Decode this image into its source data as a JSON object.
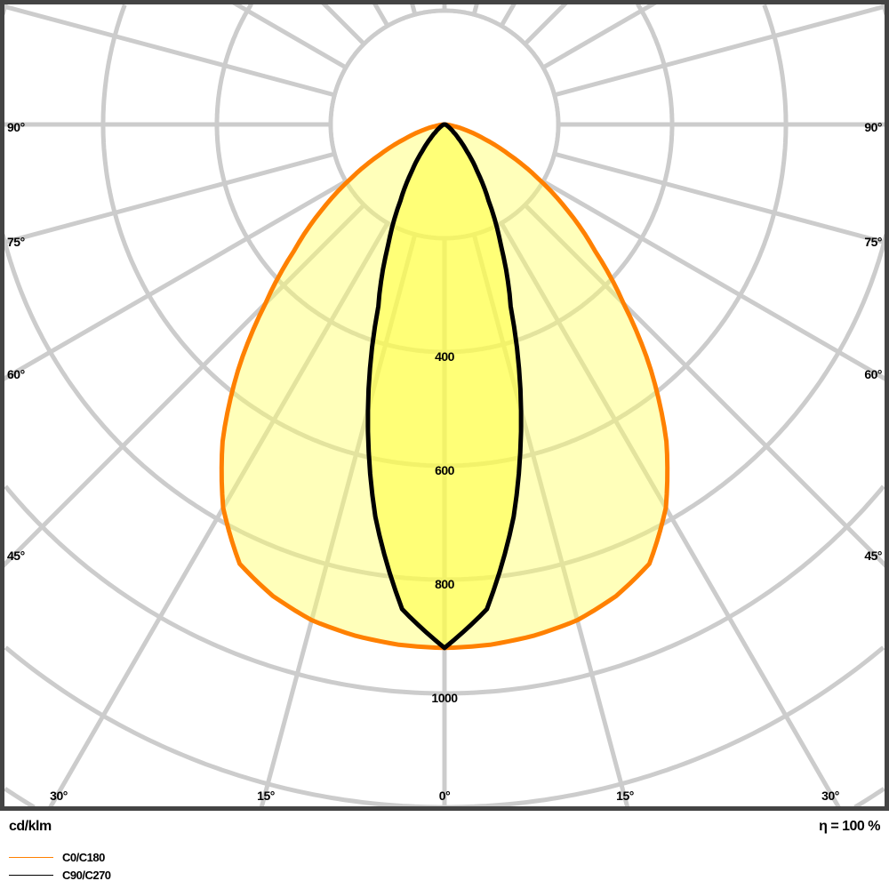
{
  "chart_data": {
    "type": "polar",
    "unit_label": "cd/klm",
    "efficiency_label": "η = 100 %",
    "radial_ticks": [
      200,
      400,
      600,
      800,
      1000,
      1200,
      1400
    ],
    "radial_tick_labels": [
      "400",
      "600",
      "800",
      "1000"
    ],
    "angle_step_deg": 15,
    "side_angle_labels": [
      "90°",
      "75°",
      "60°",
      "45°"
    ],
    "bottom_angle_labels": [
      "30°",
      "15°",
      "0°",
      "15°",
      "30°"
    ],
    "angles_deg": [
      0,
      5,
      10,
      15,
      20,
      25,
      30,
      35,
      40,
      45,
      50,
      55,
      60,
      65,
      70,
      75,
      80,
      85,
      90
    ],
    "series": [
      {
        "name": "C0/C180",
        "color": "#ff8000",
        "symmetric": true,
        "values": [
          920,
          918,
          912,
          902,
          882,
          852,
          778,
          680,
          565,
          445,
          345,
          265,
          190,
          125,
          75,
          40,
          15,
          5,
          0
        ]
      },
      {
        "name": "C90/C270",
        "color": "#000000",
        "symmetric": true,
        "values": [
          920,
          855,
          700,
          520,
          340,
          235,
          155,
          100,
          60,
          35,
          20,
          12,
          8,
          5,
          4,
          2,
          1,
          0,
          0
        ]
      }
    ],
    "colors": {
      "grid": "#cccccc",
      "frame": "#444444",
      "fill_outer": "#ffff66",
      "fill_inner": "#ffff40"
    }
  }
}
